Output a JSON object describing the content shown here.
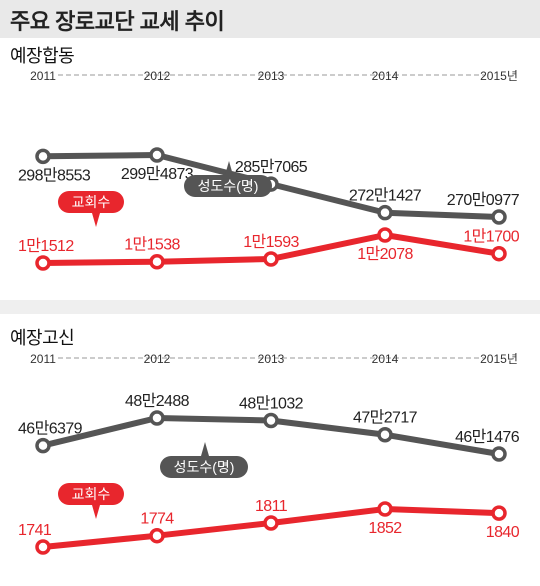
{
  "title": "주요 장로교단 교세 추이",
  "colors": {
    "member_series": "#555555",
    "church_series": "#e8262d",
    "axis": "#999999"
  },
  "chart_data": [
    {
      "type": "line",
      "title": "예장합동",
      "categories": [
        "2011",
        "2012",
        "2013",
        "2014",
        "2015년"
      ],
      "series": [
        {
          "name": "성도수(명)",
          "values": [
            2988553,
            2994873,
            2857065,
            2721427,
            2700977
          ],
          "labels": [
            "298만8553",
            "299만4873",
            "285만7065",
            "272만1427",
            "270만0977"
          ]
        },
        {
          "name": "교회수",
          "values": [
            11512,
            11538,
            11593,
            12078,
            11700
          ],
          "labels": [
            "1만1512",
            "1만1538",
            "1만1593",
            "1만2078",
            "1만1700"
          ]
        }
      ]
    },
    {
      "type": "line",
      "title": "예장고신",
      "categories": [
        "2011",
        "2012",
        "2013",
        "2014",
        "2015년"
      ],
      "series": [
        {
          "name": "성도수(명)",
          "values": [
            466379,
            482488,
            481032,
            472717,
            461476
          ],
          "labels": [
            "46만6379",
            "48만2488",
            "48만1032",
            "47만2717",
            "46만1476"
          ]
        },
        {
          "name": "교회수",
          "values": [
            1741,
            1774,
            1811,
            1852,
            1840
          ],
          "labels": [
            "1741",
            "1774",
            "1811",
            "1852",
            "1840"
          ]
        }
      ]
    }
  ]
}
